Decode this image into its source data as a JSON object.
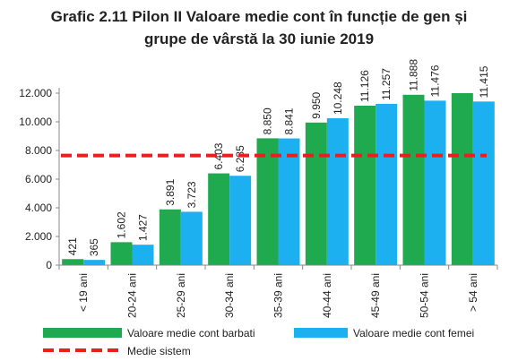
{
  "chart_data": {
    "type": "bar",
    "title_line1": "Grafic 2.11 Pilon II Valoare medie cont în funcție de gen și",
    "title_line2": "grupe de vârstă la 30 iunie 2019",
    "categories": [
      "< 19 ani",
      "20-24 ani",
      "25-29 ani",
      "30-34 ani",
      "35-39 ani",
      "40-44 ani",
      "45-49 ani",
      "50-54 ani",
      "> 54 ani"
    ],
    "series": [
      {
        "name": "Valoare medie cont barbati",
        "color": "#1faa4f",
        "values": [
          421,
          1602,
          3891,
          6403,
          8850,
          9950,
          11126,
          11888,
          12000
        ],
        "labels": [
          "421",
          "1.602",
          "3.891",
          "6.403",
          "8.850",
          "9.950",
          "11.126",
          "11.888",
          ""
        ]
      },
      {
        "name": "Valoare medie cont femei",
        "color": "#1cb0f0",
        "values": [
          365,
          1427,
          3723,
          6235,
          8841,
          10248,
          11257,
          11476,
          11415
        ],
        "labels": [
          "365",
          "1.427",
          "3.723",
          "6.235",
          "8.841",
          "10.248",
          "11.257",
          "11.476",
          "11.415"
        ]
      }
    ],
    "reference_line": {
      "name": "Medie sistem",
      "value": 7650,
      "color": "#e8201d"
    },
    "ylim": [
      0,
      12000
    ],
    "yticks": [
      0,
      2000,
      4000,
      6000,
      8000,
      10000,
      12000
    ],
    "ytick_labels": [
      "0",
      "2.000",
      "4.000",
      "6.000",
      "8.000",
      "10.000",
      "12.000"
    ],
    "grid": false,
    "legend_position": "bottom"
  }
}
